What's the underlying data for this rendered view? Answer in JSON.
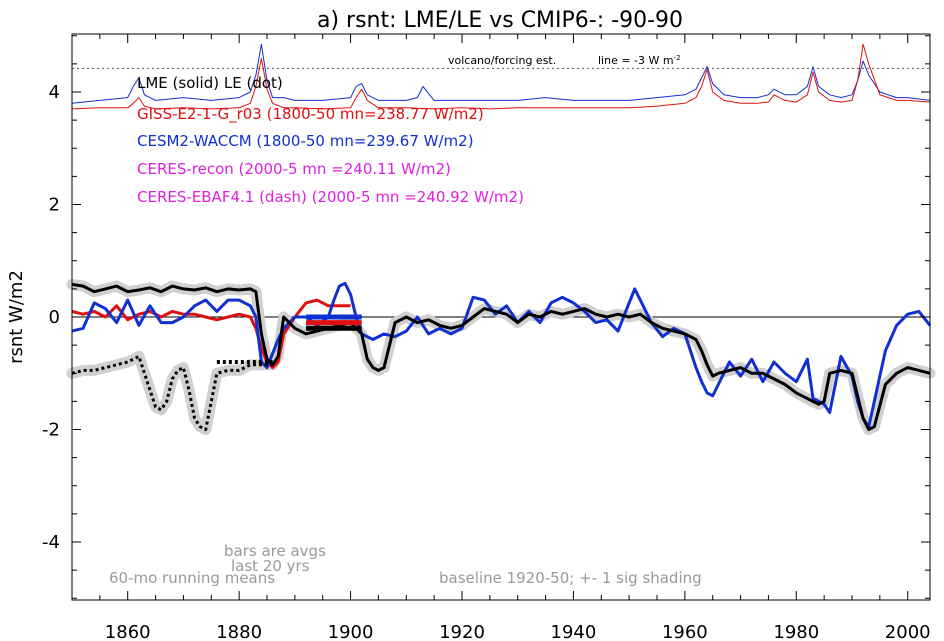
{
  "chart_data": {
    "type": "line",
    "title": "a) rsnt: LME/LE vs CMIP6-: -90-90",
    "ylabel": "rsnt W/m2",
    "xlabel": "",
    "xlim": [
      1850,
      2004
    ],
    "ylim": [
      -5,
      5.5
    ],
    "x_ticks": [
      1860,
      1880,
      1900,
      1920,
      1940,
      1960,
      1980,
      2000
    ],
    "y_ticks": [
      -4,
      -2,
      0,
      2,
      4
    ],
    "legend": [
      {
        "text": "LME (solid)   LE (dot)",
        "color": "#000000"
      },
      {
        "text": "GISS-E2-1-G_r03 (1800-50 mn=238.77 W/m2)",
        "color": "#e01010"
      },
      {
        "text": "CESM2-WACCM (1800-50 mn=239.67 W/m2)",
        "color": "#1030d0"
      },
      {
        "text": "CERES-recon (2000-5 mn =240.11 W/m2)",
        "color": "#e020e0"
      },
      {
        "text": "CERES-EBAF4.1 (dash) (2000-5 mn =240.92 W/m2)",
        "color": "#e020e0"
      }
    ],
    "annotations": {
      "volcano": "volcano/forcing est.",
      "line": "line = -3 W m",
      "line_sup": "-2",
      "bars1": "bars are avgs",
      "bars2": "last 20 yrs",
      "running": "60-mo running means",
      "baseline": "baseline 1920-50; +- 1 sig shading"
    },
    "reference_line_y": 4.42,
    "series": [
      {
        "name": "LME (solid)",
        "style": "solid",
        "color": "#000000",
        "x": [
          1850,
          1852,
          1854,
          1856,
          1858,
          1860,
          1862,
          1864,
          1866,
          1868,
          1870,
          1872,
          1874,
          1876,
          1878,
          1880,
          1882,
          1883,
          1884,
          1885,
          1886,
          1887,
          1888,
          1890,
          1892,
          1894,
          1896,
          1898,
          1900,
          1902,
          1903,
          1904,
          1905,
          1906,
          1908,
          1910,
          1912,
          1914,
          1916,
          1918,
          1920,
          1922,
          1924,
          1926,
          1928,
          1930,
          1932,
          1934,
          1936,
          1938,
          1940,
          1942,
          1944,
          1946,
          1948,
          1950,
          1952,
          1954,
          1956,
          1958,
          1960,
          1962,
          1963,
          1964,
          1965,
          1966,
          1968,
          1970,
          1972,
          1974,
          1976,
          1978,
          1980,
          1982,
          1983,
          1984,
          1985,
          1986,
          1988,
          1990,
          1991,
          1992,
          1993,
          1994,
          1996,
          1998,
          2000,
          2002,
          2004
        ],
        "y": [
          0.58,
          0.55,
          0.45,
          0.5,
          0.55,
          0.45,
          0.48,
          0.52,
          0.45,
          0.55,
          0.5,
          0.48,
          0.52,
          0.45,
          0.5,
          0.48,
          0.5,
          0.45,
          -0.3,
          -0.75,
          -0.85,
          -0.7,
          0.0,
          -0.2,
          -0.3,
          -0.25,
          -0.2,
          -0.15,
          -0.1,
          -0.3,
          -0.75,
          -0.9,
          -0.95,
          -0.9,
          -0.1,
          0.0,
          -0.1,
          -0.05,
          -0.15,
          -0.2,
          -0.15,
          0.0,
          0.15,
          0.1,
          0.05,
          -0.1,
          0.05,
          0.0,
          0.1,
          0.05,
          0.1,
          0.15,
          0.05,
          0.0,
          0.05,
          0.0,
          0.05,
          -0.1,
          -0.2,
          -0.25,
          -0.3,
          -0.4,
          -0.6,
          -0.85,
          -1.05,
          -1.0,
          -0.95,
          -0.9,
          -1.0,
          -1.0,
          -1.1,
          -1.2,
          -1.35,
          -1.45,
          -1.5,
          -1.55,
          -1.5,
          -1.0,
          -0.95,
          -1.0,
          -1.4,
          -1.8,
          -2.0,
          -1.95,
          -1.2,
          -1.0,
          -0.9,
          -0.95,
          -1.0
        ]
      },
      {
        "name": "LE (dot)",
        "style": "dot",
        "color": "#000000",
        "x": [
          1850,
          1852,
          1854,
          1856,
          1858,
          1860,
          1862,
          1864,
          1865,
          1866,
          1867,
          1868,
          1869,
          1870,
          1871,
          1872,
          1873,
          1874,
          1876,
          1878,
          1880,
          1882,
          1884,
          1886
        ],
        "y": [
          -1.0,
          -0.95,
          -0.95,
          -0.9,
          -0.85,
          -0.8,
          -0.7,
          -1.3,
          -1.6,
          -1.65,
          -1.5,
          -1.1,
          -0.95,
          -0.9,
          -1.3,
          -1.8,
          -1.95,
          -2.0,
          -1.0,
          -0.95,
          -0.95,
          -0.85,
          -0.85,
          -0.85
        ]
      },
      {
        "name": "GISS-E2-1-G_r03",
        "style": "solid",
        "color": "#e01010",
        "x": [
          1850,
          1852,
          1854,
          1856,
          1858,
          1860,
          1862,
          1864,
          1866,
          1868,
          1870,
          1872,
          1874,
          1876,
          1878,
          1880,
          1882,
          1883,
          1884,
          1885,
          1886,
          1887,
          1888,
          1890,
          1892,
          1894,
          1896,
          1898,
          1900
        ],
        "y": [
          0.1,
          0.05,
          0.1,
          0.0,
          0.2,
          -0.05,
          0.05,
          0.1,
          0.0,
          0.1,
          0.05,
          0.05,
          0.0,
          -0.05,
          0.0,
          0.05,
          0.0,
          -0.2,
          -0.55,
          -0.8,
          -0.9,
          -0.8,
          -0.3,
          0.0,
          0.25,
          0.3,
          0.2,
          0.2,
          0.2
        ]
      },
      {
        "name": "CESM2-WACCM",
        "style": "solid",
        "color": "#1030d0",
        "x": [
          1850,
          1852,
          1854,
          1856,
          1858,
          1860,
          1862,
          1864,
          1866,
          1868,
          1870,
          1872,
          1874,
          1876,
          1878,
          1880,
          1882,
          1883,
          1884,
          1885,
          1886,
          1887,
          1888,
          1890,
          1892,
          1894,
          1896,
          1897,
          1898,
          1899,
          1900,
          1901,
          1902,
          1904,
          1906,
          1908,
          1910,
          1912,
          1914,
          1916,
          1918,
          1920,
          1922,
          1924,
          1926,
          1928,
          1930,
          1932,
          1934,
          1936,
          1938,
          1940,
          1942,
          1944,
          1946,
          1948,
          1950,
          1951,
          1952,
          1953,
          1954,
          1956,
          1958,
          1960,
          1962,
          1963,
          1964,
          1965,
          1966,
          1968,
          1970,
          1972,
          1974,
          1976,
          1978,
          1980,
          1982,
          1983,
          1984,
          1985,
          1986,
          1988,
          1990,
          1991,
          1992,
          1993,
          1994,
          1996,
          1998,
          2000,
          2002,
          2004
        ],
        "y": [
          -0.25,
          -0.2,
          0.25,
          0.15,
          -0.1,
          0.3,
          -0.15,
          0.2,
          -0.1,
          -0.1,
          0.0,
          0.2,
          0.3,
          0.1,
          0.3,
          0.3,
          0.2,
          0.0,
          -0.8,
          -0.9,
          -0.65,
          -0.4,
          -0.2,
          0.0,
          0.0,
          -0.15,
          0.0,
          0.3,
          0.55,
          0.6,
          0.4,
          0.0,
          -0.3,
          -0.4,
          -0.3,
          -0.35,
          -0.25,
          0.0,
          -0.3,
          -0.2,
          -0.3,
          -0.2,
          0.35,
          0.3,
          0.05,
          0.2,
          -0.1,
          0.1,
          -0.1,
          0.25,
          0.35,
          0.25,
          0.1,
          -0.1,
          -0.05,
          -0.25,
          0.25,
          0.5,
          0.3,
          0.1,
          -0.1,
          -0.35,
          -0.2,
          -0.3,
          -0.9,
          -1.15,
          -1.35,
          -1.4,
          -1.2,
          -0.8,
          -1.05,
          -0.75,
          -1.15,
          -0.8,
          -1.0,
          -1.15,
          -0.75,
          -1.45,
          -1.5,
          -1.55,
          -1.7,
          -0.7,
          -1.05,
          -1.5,
          -1.8,
          -1.95,
          -1.5,
          -0.6,
          -0.15,
          0.05,
          0.1,
          -0.15
        ]
      },
      {
        "name": "LME volcano/forcing est.",
        "style": "thin",
        "color": "#1030d0",
        "x": [
          1850,
          1855,
          1860,
          1861,
          1862,
          1863,
          1865,
          1870,
          1875,
          1880,
          1882,
          1883,
          1884,
          1885,
          1886,
          1888,
          1890,
          1895,
          1900,
          1901,
          1902,
          1903,
          1905,
          1910,
          1912,
          1913,
          1915,
          1920,
          1925,
          1930,
          1935,
          1940,
          1945,
          1950,
          1955,
          1960,
          1962,
          1963,
          1964,
          1965,
          1967,
          1970,
          1973,
          1975,
          1976,
          1978,
          1980,
          1982,
          1983,
          1984,
          1986,
          1988,
          1990,
          1991,
          1992,
          1993,
          1995,
          1998,
          2000,
          2004
        ],
        "y": [
          3.8,
          3.85,
          3.9,
          4.1,
          4.25,
          3.95,
          3.85,
          3.9,
          3.85,
          3.9,
          4.0,
          4.3,
          4.85,
          4.2,
          3.9,
          3.9,
          3.85,
          3.85,
          3.9,
          4.1,
          4.15,
          3.95,
          3.85,
          3.85,
          3.9,
          4.1,
          3.85,
          3.85,
          3.85,
          3.85,
          3.9,
          3.85,
          3.85,
          3.85,
          3.9,
          3.95,
          4.05,
          4.25,
          4.45,
          4.15,
          3.95,
          3.9,
          3.9,
          3.95,
          4.05,
          3.95,
          3.95,
          4.1,
          4.45,
          4.1,
          3.95,
          3.9,
          3.95,
          4.2,
          4.55,
          4.3,
          4.0,
          3.9,
          3.9,
          3.85
        ]
      },
      {
        "name": "GISS volcano/forcing est.",
        "style": "thin",
        "color": "#e01010",
        "x": [
          1850,
          1855,
          1860,
          1861,
          1862,
          1863,
          1865,
          1870,
          1875,
          1880,
          1882,
          1883,
          1884,
          1885,
          1886,
          1888,
          1890,
          1895,
          1900,
          1901,
          1902,
          1903,
          1905,
          1910,
          1915,
          1920,
          1925,
          1930,
          1935,
          1940,
          1945,
          1950,
          1955,
          1960,
          1962,
          1963,
          1964,
          1965,
          1967,
          1970,
          1973,
          1975,
          1976,
          1978,
          1980,
          1982,
          1983,
          1984,
          1986,
          1988,
          1990,
          1991,
          1992,
          1993,
          1995,
          1998,
          2000,
          2004
        ],
        "y": [
          3.7,
          3.72,
          3.72,
          3.8,
          3.9,
          3.75,
          3.7,
          3.72,
          3.7,
          3.72,
          3.8,
          4.1,
          4.6,
          4.05,
          3.8,
          3.72,
          3.72,
          3.7,
          3.72,
          3.9,
          4.05,
          3.85,
          3.72,
          3.72,
          3.7,
          3.72,
          3.7,
          3.72,
          3.72,
          3.72,
          3.72,
          3.72,
          3.75,
          3.8,
          3.9,
          4.1,
          4.4,
          4.0,
          3.85,
          3.8,
          3.8,
          3.82,
          3.95,
          3.85,
          3.82,
          3.95,
          4.35,
          4.0,
          3.85,
          3.82,
          3.85,
          4.2,
          4.85,
          4.5,
          3.95,
          3.85,
          3.85,
          3.82
        ]
      }
    ],
    "bars": [
      {
        "name": "GISS last 20 yrs",
        "color": "#e01010",
        "x0": 1892,
        "x1": 1902,
        "y": -0.1
      },
      {
        "name": "CESM2 last 20 yrs",
        "color": "#1030d0",
        "x0": 1892,
        "x1": 1902,
        "y": 0.0
      },
      {
        "name": "LME last 20 yrs",
        "color": "#000000",
        "x0": 1892,
        "x1": 1902,
        "y": -0.2
      },
      {
        "name": "LE last 20 yrs",
        "color": "#000000",
        "dotted": true,
        "x0": 1876,
        "x1": 1886,
        "y": -0.8
      }
    ]
  }
}
